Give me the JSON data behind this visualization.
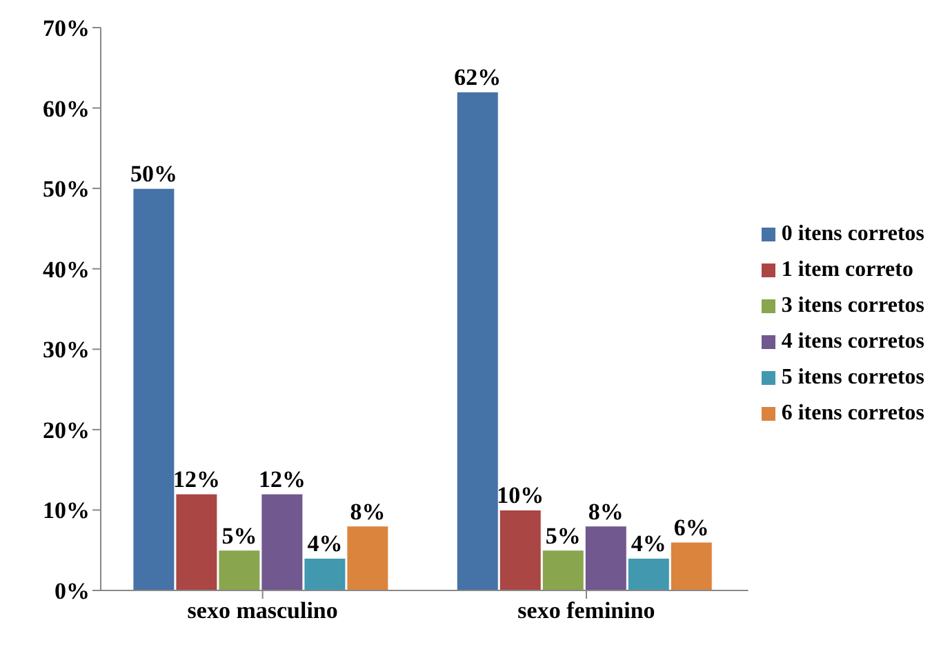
{
  "chart_data": {
    "type": "bar",
    "categories": [
      "sexo masculino",
      "sexo feminino"
    ],
    "series": [
      {
        "name": "0 itens corretos",
        "color": "#4572a7",
        "values": [
          50,
          62
        ],
        "value_labels": [
          "50%",
          "62%"
        ]
      },
      {
        "name": "1 item correto",
        "color": "#aa4643",
        "values": [
          12,
          10
        ],
        "value_labels": [
          "12%",
          "10%"
        ]
      },
      {
        "name": "3 itens corretos",
        "color": "#89a54e",
        "values": [
          5,
          5
        ],
        "value_labels": [
          "5%",
          "5%"
        ]
      },
      {
        "name": "4 itens corretos",
        "color": "#71588f",
        "values": [
          12,
          8
        ],
        "value_labels": [
          "12%",
          "8%"
        ]
      },
      {
        "name": "5 itens corretos",
        "color": "#4198af",
        "values": [
          4,
          4
        ],
        "value_labels": [
          "4%",
          "4%"
        ]
      },
      {
        "name": "6 itens corretos",
        "color": "#db843d",
        "values": [
          8,
          6
        ],
        "value_labels": [
          "8%",
          "6%"
        ]
      }
    ],
    "ylim": [
      0,
      70
    ],
    "yticks": [
      {
        "value": 0,
        "label": "0%"
      },
      {
        "value": 10,
        "label": "10%"
      },
      {
        "value": 20,
        "label": "20%"
      },
      {
        "value": 30,
        "label": "30%"
      },
      {
        "value": 40,
        "label": "40%"
      },
      {
        "value": 50,
        "label": "50%"
      },
      {
        "value": 60,
        "label": "60%"
      },
      {
        "value": 70,
        "label": "70%"
      }
    ],
    "grid": false,
    "legend": "right"
  }
}
